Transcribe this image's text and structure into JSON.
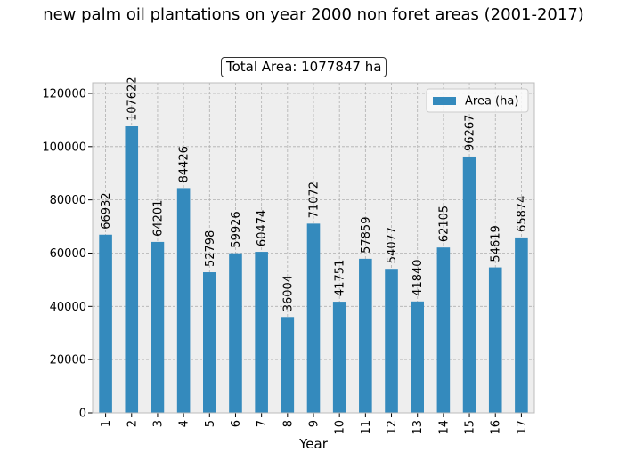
{
  "page": {
    "title": "new palm oil plantations on year 2000 non foret areas  (2001-2017)",
    "subtitle": "Total Area: 1077847 ha"
  },
  "colors": {
    "bar": "#348abd",
    "plot_background": "#eeeeee",
    "grid": "#b0b0b0"
  },
  "chart_data": {
    "type": "bar",
    "title": "Total Area: 1077847 ha",
    "xlabel": "Year",
    "ylabel": "",
    "categories": [
      "1",
      "2",
      "3",
      "4",
      "5",
      "6",
      "7",
      "8",
      "9",
      "10",
      "11",
      "12",
      "13",
      "14",
      "15",
      "16",
      "17"
    ],
    "series": [
      {
        "name": "Area (ha)",
        "values": [
          66932,
          107622,
          64201,
          84426,
          52798,
          59926,
          60474,
          36004,
          71072,
          41751,
          57859,
          54077,
          41840,
          62105,
          96267,
          54619,
          65874
        ]
      }
    ],
    "ylim": [
      0,
      124000
    ],
    "yticks": [
      0,
      20000,
      40000,
      60000,
      80000,
      100000,
      120000
    ],
    "grid": true,
    "legend_position": "top-right"
  }
}
